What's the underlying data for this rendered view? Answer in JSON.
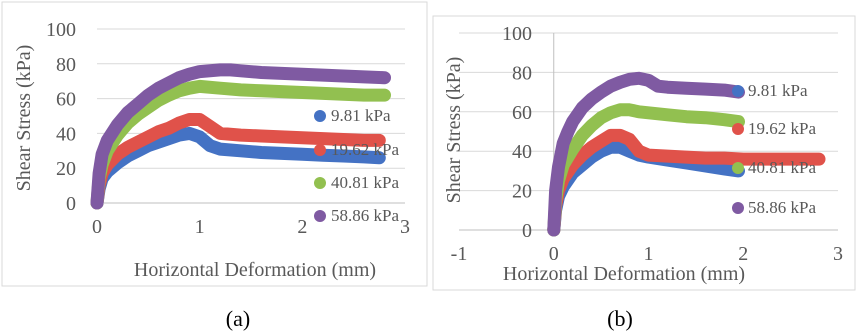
{
  "chart_data": [
    {
      "type": "line",
      "caption": "(a)",
      "xlabel": "Horizontal Deformation (mm)",
      "ylabel": "Shear Stress (kPa)",
      "xlim": [
        0,
        3
      ],
      "ylim": [
        0,
        100
      ],
      "xticks": [
        "0",
        "1",
        "2",
        "3"
      ],
      "yticks": [
        "0",
        "20",
        "40",
        "60",
        "80",
        "100"
      ],
      "grid": "horizontal",
      "legend": "right",
      "series": [
        {
          "name": "9.81 kPa",
          "color": "#4472c4",
          "x": [
            0,
            0.02,
            0.05,
            0.1,
            0.2,
            0.3,
            0.4,
            0.5,
            0.6,
            0.7,
            0.8,
            0.9,
            1.0,
            1.1,
            1.2,
            1.4,
            1.6,
            1.8,
            2.0,
            2.2,
            2.4,
            2.6,
            2.75
          ],
          "y": [
            0,
            8,
            14,
            18,
            23,
            27,
            30,
            33,
            35,
            37,
            39,
            40,
            38,
            33,
            31,
            30,
            29,
            28.5,
            28,
            27.5,
            27,
            26.5,
            26
          ]
        },
        {
          "name": "19.62 kPa",
          "color": "#e0524a",
          "x": [
            0,
            0.02,
            0.05,
            0.1,
            0.2,
            0.3,
            0.4,
            0.5,
            0.6,
            0.7,
            0.8,
            0.9,
            1.0,
            1.1,
            1.2,
            1.4,
            1.6,
            1.8,
            2.0,
            2.2,
            2.4,
            2.6,
            2.75
          ],
          "y": [
            0,
            10,
            17,
            22,
            28,
            32,
            35,
            38,
            41,
            43,
            46,
            48,
            48,
            44,
            40,
            39,
            38.5,
            38,
            37.5,
            37,
            36.5,
            36,
            36
          ]
        },
        {
          "name": "40.81 kPa",
          "color": "#92c050",
          "x": [
            0,
            0.02,
            0.05,
            0.1,
            0.2,
            0.3,
            0.4,
            0.5,
            0.6,
            0.7,
            0.8,
            0.9,
            1.0,
            1.2,
            1.4,
            1.6,
            1.8,
            2.0,
            2.2,
            2.4,
            2.6,
            2.8
          ],
          "y": [
            0,
            14,
            22,
            30,
            39,
            46,
            51,
            55,
            59,
            62,
            64.5,
            66,
            67,
            66,
            65,
            64.5,
            64,
            63.5,
            63,
            62.5,
            62,
            62
          ]
        },
        {
          "name": "58.86 kPa",
          "color": "#7f5aa2",
          "x": [
            0,
            0.02,
            0.05,
            0.1,
            0.2,
            0.3,
            0.4,
            0.5,
            0.6,
            0.7,
            0.8,
            0.9,
            1.0,
            1.2,
            1.3,
            1.4,
            1.6,
            1.8,
            2.0,
            2.2,
            2.4,
            2.6,
            2.8
          ],
          "y": [
            0,
            17,
            28,
            36,
            45,
            52,
            57,
            62,
            66,
            69,
            72,
            74,
            75.5,
            76.5,
            76.5,
            76,
            75,
            74.5,
            74,
            73.5,
            73,
            72.5,
            72
          ]
        }
      ]
    },
    {
      "type": "line",
      "caption": "(b)",
      "xlabel": "Horizontal Deformation (mm)",
      "ylabel": "Shear Stress (kPa)",
      "xlim": [
        -1,
        3
      ],
      "ylim": [
        0,
        100
      ],
      "xticks": [
        "-1",
        "0",
        "1",
        "2",
        "3"
      ],
      "yticks": [
        "0",
        "20",
        "40",
        "60",
        "80",
        "100"
      ],
      "grid": "horizontal",
      "legend": "right",
      "series": [
        {
          "name": "9.81 kPa",
          "color": "#4472c4",
          "x": [
            0,
            0.02,
            0.05,
            0.1,
            0.2,
            0.3,
            0.4,
            0.5,
            0.6,
            0.7,
            0.8,
            0.9,
            1.0,
            1.2,
            1.4,
            1.6,
            1.8,
            1.95
          ],
          "y": [
            0,
            10,
            17,
            22,
            29,
            33,
            37,
            40,
            42,
            42,
            40,
            38,
            37,
            35.5,
            34,
            32.5,
            31,
            30
          ]
        },
        {
          "name": "19.62 kPa",
          "color": "#e0524a",
          "x": [
            0,
            0.02,
            0.05,
            0.1,
            0.2,
            0.3,
            0.4,
            0.5,
            0.6,
            0.7,
            0.8,
            0.9,
            1.0,
            1.2,
            1.4,
            1.6,
            1.8,
            2.0,
            2.2,
            2.4,
            2.6,
            2.8
          ],
          "y": [
            0,
            12,
            20,
            26,
            33,
            38,
            42,
            45,
            48,
            48,
            46,
            40,
            38,
            37.5,
            37,
            36.5,
            36.5,
            36,
            36,
            36,
            36,
            36
          ]
        },
        {
          "name": "40.81 kPa",
          "color": "#92c050",
          "x": [
            0,
            0.02,
            0.05,
            0.1,
            0.2,
            0.3,
            0.4,
            0.5,
            0.6,
            0.7,
            0.8,
            0.9,
            1.0,
            1.2,
            1.4,
            1.6,
            1.8,
            1.95
          ],
          "y": [
            0,
            15,
            25,
            33,
            41,
            48,
            53,
            57,
            59.5,
            61,
            61,
            60,
            59.5,
            58.5,
            57.5,
            57,
            56,
            55
          ]
        },
        {
          "name": "58.86 kPa",
          "color": "#7f5aa2",
          "x": [
            0,
            0.02,
            0.05,
            0.1,
            0.15,
            0.2,
            0.3,
            0.4,
            0.5,
            0.6,
            0.7,
            0.8,
            0.9,
            1.0,
            1.1,
            1.2,
            1.4,
            1.6,
            1.8,
            1.95
          ],
          "y": [
            0,
            20,
            32,
            44,
            50,
            55,
            62,
            66.5,
            70,
            73,
            75,
            76.5,
            77,
            76,
            73,
            72.5,
            72,
            71.5,
            71,
            70
          ]
        }
      ]
    }
  ]
}
